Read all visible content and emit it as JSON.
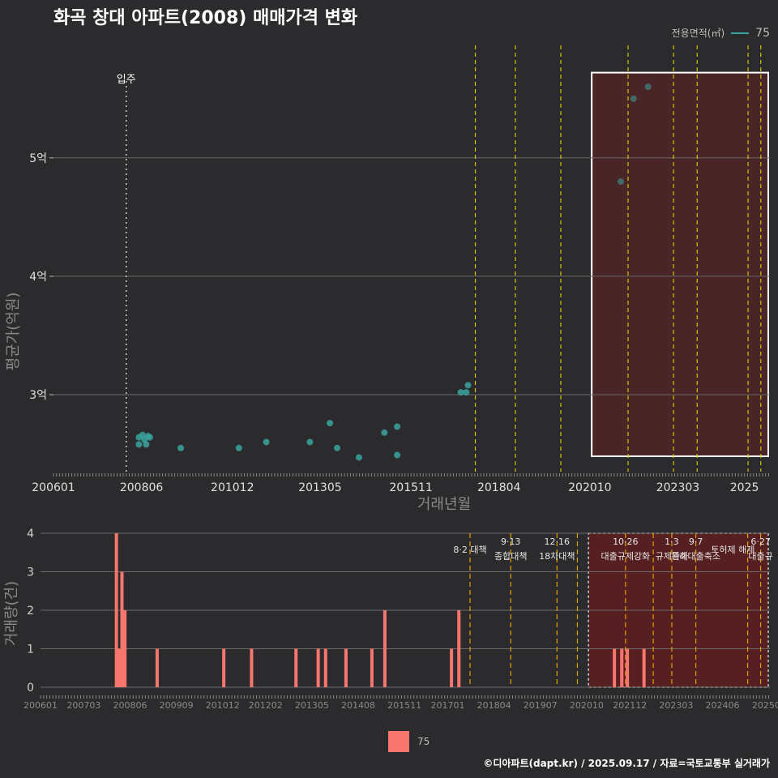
{
  "title": "화곡 창대 아파트(2008) 매매가격 변화",
  "legend": {
    "title": "전용면적(㎡)",
    "label": "75",
    "color": "#3aa39d",
    "bar_color": "#f8766d"
  },
  "credit": "©디아파트(dapt.kr) / 2025.09.17 / 자료=국토교통부 실거래가",
  "chart_data": [
    {
      "type": "scatter",
      "title": "화곡 창대 아파트(2008) 매매가격 변화",
      "xlabel": "거래년월",
      "ylabel": "평균가(억원)",
      "xlim": [
        2006.0,
        2025.7
      ],
      "ylim": [
        2.35,
        5.95
      ],
      "x_ticks": [
        {
          "value": 2006.0,
          "label": "200601"
        },
        {
          "value": 2008.42,
          "label": "200806"
        },
        {
          "value": 2010.92,
          "label": "201012"
        },
        {
          "value": 2013.33,
          "label": "201305"
        },
        {
          "value": 2015.83,
          "label": "201511"
        },
        {
          "value": 2018.25,
          "label": "201804"
        },
        {
          "value": 2020.75,
          "label": "202010"
        },
        {
          "value": 2023.17,
          "label": "202303"
        },
        {
          "value": 2025.0,
          "label": "2025"
        }
      ],
      "y_ticks": [
        {
          "value": 3,
          "label": "3억"
        },
        {
          "value": 4,
          "label": "4억"
        },
        {
          "value": 5,
          "label": "5억"
        }
      ],
      "annotation": {
        "x": 2008.0,
        "label": "입주"
      },
      "policy_lines": [
        2017.6,
        2018.7,
        2019.95,
        2021.8,
        2023.05,
        2023.7,
        2025.1,
        2025.45
      ],
      "highlight": {
        "x": [
          2020.8,
          2025.7
        ],
        "y": [
          2.48,
          5.72
        ]
      },
      "series": [
        {
          "name": "75",
          "points": [
            {
              "x": 2008.35,
              "y": 2.64
            },
            {
              "x": 2008.35,
              "y": 2.58
            },
            {
              "x": 2008.45,
              "y": 2.66
            },
            {
              "x": 2008.5,
              "y": 2.62
            },
            {
              "x": 2008.55,
              "y": 2.58
            },
            {
              "x": 2008.6,
              "y": 2.65
            },
            {
              "x": 2008.65,
              "y": 2.64
            },
            {
              "x": 2009.5,
              "y": 2.55
            },
            {
              "x": 2011.1,
              "y": 2.55
            },
            {
              "x": 2011.85,
              "y": 2.6
            },
            {
              "x": 2013.05,
              "y": 2.6
            },
            {
              "x": 2013.6,
              "y": 2.76
            },
            {
              "x": 2013.8,
              "y": 2.55
            },
            {
              "x": 2014.4,
              "y": 2.47
            },
            {
              "x": 2015.1,
              "y": 2.68
            },
            {
              "x": 2015.45,
              "y": 2.73
            },
            {
              "x": 2015.45,
              "y": 2.49
            },
            {
              "x": 2017.2,
              "y": 3.02
            },
            {
              "x": 2017.35,
              "y": 3.02
            },
            {
              "x": 2017.4,
              "y": 3.08
            },
            {
              "x": 2021.6,
              "y": 4.8
            },
            {
              "x": 2021.95,
              "y": 5.5
            },
            {
              "x": 2022.35,
              "y": 5.6
            }
          ]
        }
      ]
    },
    {
      "type": "bar",
      "xlabel": "",
      "ylabel": "거래량(건)",
      "xlim": [
        2006.0,
        2025.7
      ],
      "ylim": [
        0,
        4
      ],
      "x_ticks": [
        {
          "value": 2006.0,
          "label": "200601"
        },
        {
          "value": 2007.17,
          "label": "200703"
        },
        {
          "value": 2008.42,
          "label": "200806"
        },
        {
          "value": 2009.67,
          "label": "200909"
        },
        {
          "value": 2010.92,
          "label": "201012"
        },
        {
          "value": 2012.08,
          "label": "201202"
        },
        {
          "value": 2013.33,
          "label": "201305"
        },
        {
          "value": 2014.58,
          "label": "201408"
        },
        {
          "value": 2015.83,
          "label": "201511"
        },
        {
          "value": 2017.0,
          "label": "201701"
        },
        {
          "value": 2018.25,
          "label": "201804"
        },
        {
          "value": 2019.5,
          "label": "201907"
        },
        {
          "value": 2020.75,
          "label": "202010"
        },
        {
          "value": 2021.92,
          "label": "202112"
        },
        {
          "value": 2023.17,
          "label": "202303"
        },
        {
          "value": 2024.42,
          "label": "202406"
        },
        {
          "value": 2025.6,
          "label": "20250"
        }
      ],
      "y_ticks": [
        0,
        1,
        2,
        3,
        4
      ],
      "policy_lines": [
        2017.6,
        2018.7,
        2019.95,
        2020.5,
        2021.8,
        2022.55,
        2023.05,
        2023.7,
        2025.1,
        2025.45
      ],
      "policy_labels": [
        {
          "x": 2017.6,
          "date": "",
          "name": "8·2 대책"
        },
        {
          "x": 2018.7,
          "date": "9·13",
          "name": "종합대책"
        },
        {
          "x": 2019.95,
          "date": "12·16",
          "name": "18차대책"
        },
        {
          "x": 2021.8,
          "date": "10·26",
          "name": "대출규제강화"
        },
        {
          "x": 2023.05,
          "date": "1·3",
          "name": "규제완화"
        },
        {
          "x": 2023.7,
          "date": "9·7",
          "name": "특례대출축소"
        },
        {
          "x": 2024.7,
          "date": "",
          "name": "토허제 해제"
        },
        {
          "x": 2025.45,
          "date": "6·27",
          "name": "대출규"
        }
      ],
      "highlight": {
        "x": [
          2020.8,
          2025.7
        ],
        "y": [
          0,
          4
        ]
      },
      "series": [
        {
          "name": "75",
          "points": [
            {
              "x": 2008.05,
              "y": 4
            },
            {
              "x": 2008.12,
              "y": 1
            },
            {
              "x": 2008.2,
              "y": 3
            },
            {
              "x": 2008.28,
              "y": 2
            },
            {
              "x": 2009.15,
              "y": 1
            },
            {
              "x": 2010.95,
              "y": 1
            },
            {
              "x": 2011.7,
              "y": 1
            },
            {
              "x": 2012.9,
              "y": 1
            },
            {
              "x": 2013.5,
              "y": 1
            },
            {
              "x": 2013.7,
              "y": 1
            },
            {
              "x": 2014.25,
              "y": 1
            },
            {
              "x": 2014.95,
              "y": 1
            },
            {
              "x": 2015.3,
              "y": 2
            },
            {
              "x": 2017.1,
              "y": 1
            },
            {
              "x": 2017.3,
              "y": 2
            },
            {
              "x": 2021.5,
              "y": 1
            },
            {
              "x": 2021.7,
              "y": 1
            },
            {
              "x": 2021.85,
              "y": 1
            },
            {
              "x": 2022.3,
              "y": 1
            }
          ]
        }
      ]
    }
  ]
}
